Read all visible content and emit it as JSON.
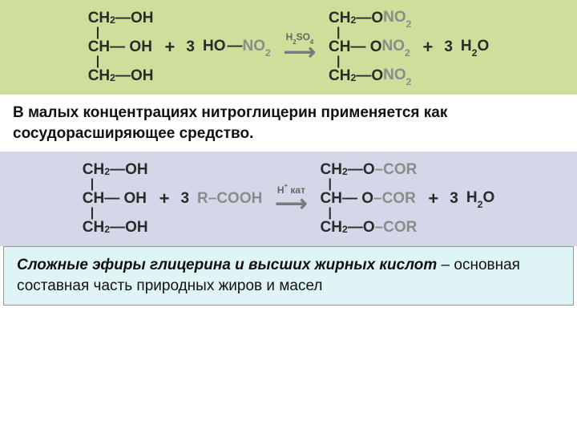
{
  "panel1": {
    "bg": "#cddf9a",
    "glycerol": {
      "l1a": "CH",
      "l1b": "2",
      "l1c": "—OH",
      "l2a": "CH",
      "l2c": "— OH",
      "l3a": "CH",
      "l3b": "2",
      "l3c": "—OH"
    },
    "plus": "+",
    "coef1": "3",
    "acid": {
      "a": "HO",
      "dash": "—",
      "b": "NO",
      "bsub": "2"
    },
    "cond": {
      "a": "H",
      "asub": "2",
      "b": "SO",
      "bsub": "4"
    },
    "product": {
      "l1a": "CH",
      "l1b": "2",
      "l1c": "—O",
      "l1d": "NO",
      "l1e": "2",
      "l2a": "CH",
      "l2c": "— O",
      "l2d": "NO",
      "l2e": "2",
      "l3a": "CH",
      "l3b": "2",
      "l3c": "—O",
      "l3d": "NO",
      "l3e": "2"
    },
    "coef2": "3",
    "water": {
      "a": "H",
      "asub": "2",
      "b": "O"
    }
  },
  "text1": "В малых концентрациях нитроглицерин применяется как сосудорасширяющее средство.",
  "panel2": {
    "bg": "#d4d7e8",
    "glycerol": {
      "l1a": "CH",
      "l1b": "2",
      "l1c": "—OH",
      "l2a": "CH",
      "l2c": "— OH",
      "l3a": "CH",
      "l3b": "2",
      "l3c": "—OH"
    },
    "plus": "+",
    "coef1": "3",
    "acid": {
      "a": "R–COOH"
    },
    "cond": {
      "a": "H",
      "asup": "+",
      "b": " кат"
    },
    "product": {
      "l1a": "CH",
      "l1b": "2",
      "l1c": "—O",
      "l1d": "–COR",
      "l2a": "CH",
      "l2c": "— O",
      "l2d": "–COR",
      "l3a": "CH",
      "l3b": "2",
      "l3c": "—O",
      "l3d": "–COR"
    },
    "coef2": "3",
    "water": {
      "a": "H",
      "asub": "2",
      "b": "O"
    }
  },
  "text2": {
    "bg": "#dff5f5",
    "part1": "Сложные эфиры глицерина и высших жирных кислот",
    "part2": " – основная составная часть природных жиров и масел"
  }
}
